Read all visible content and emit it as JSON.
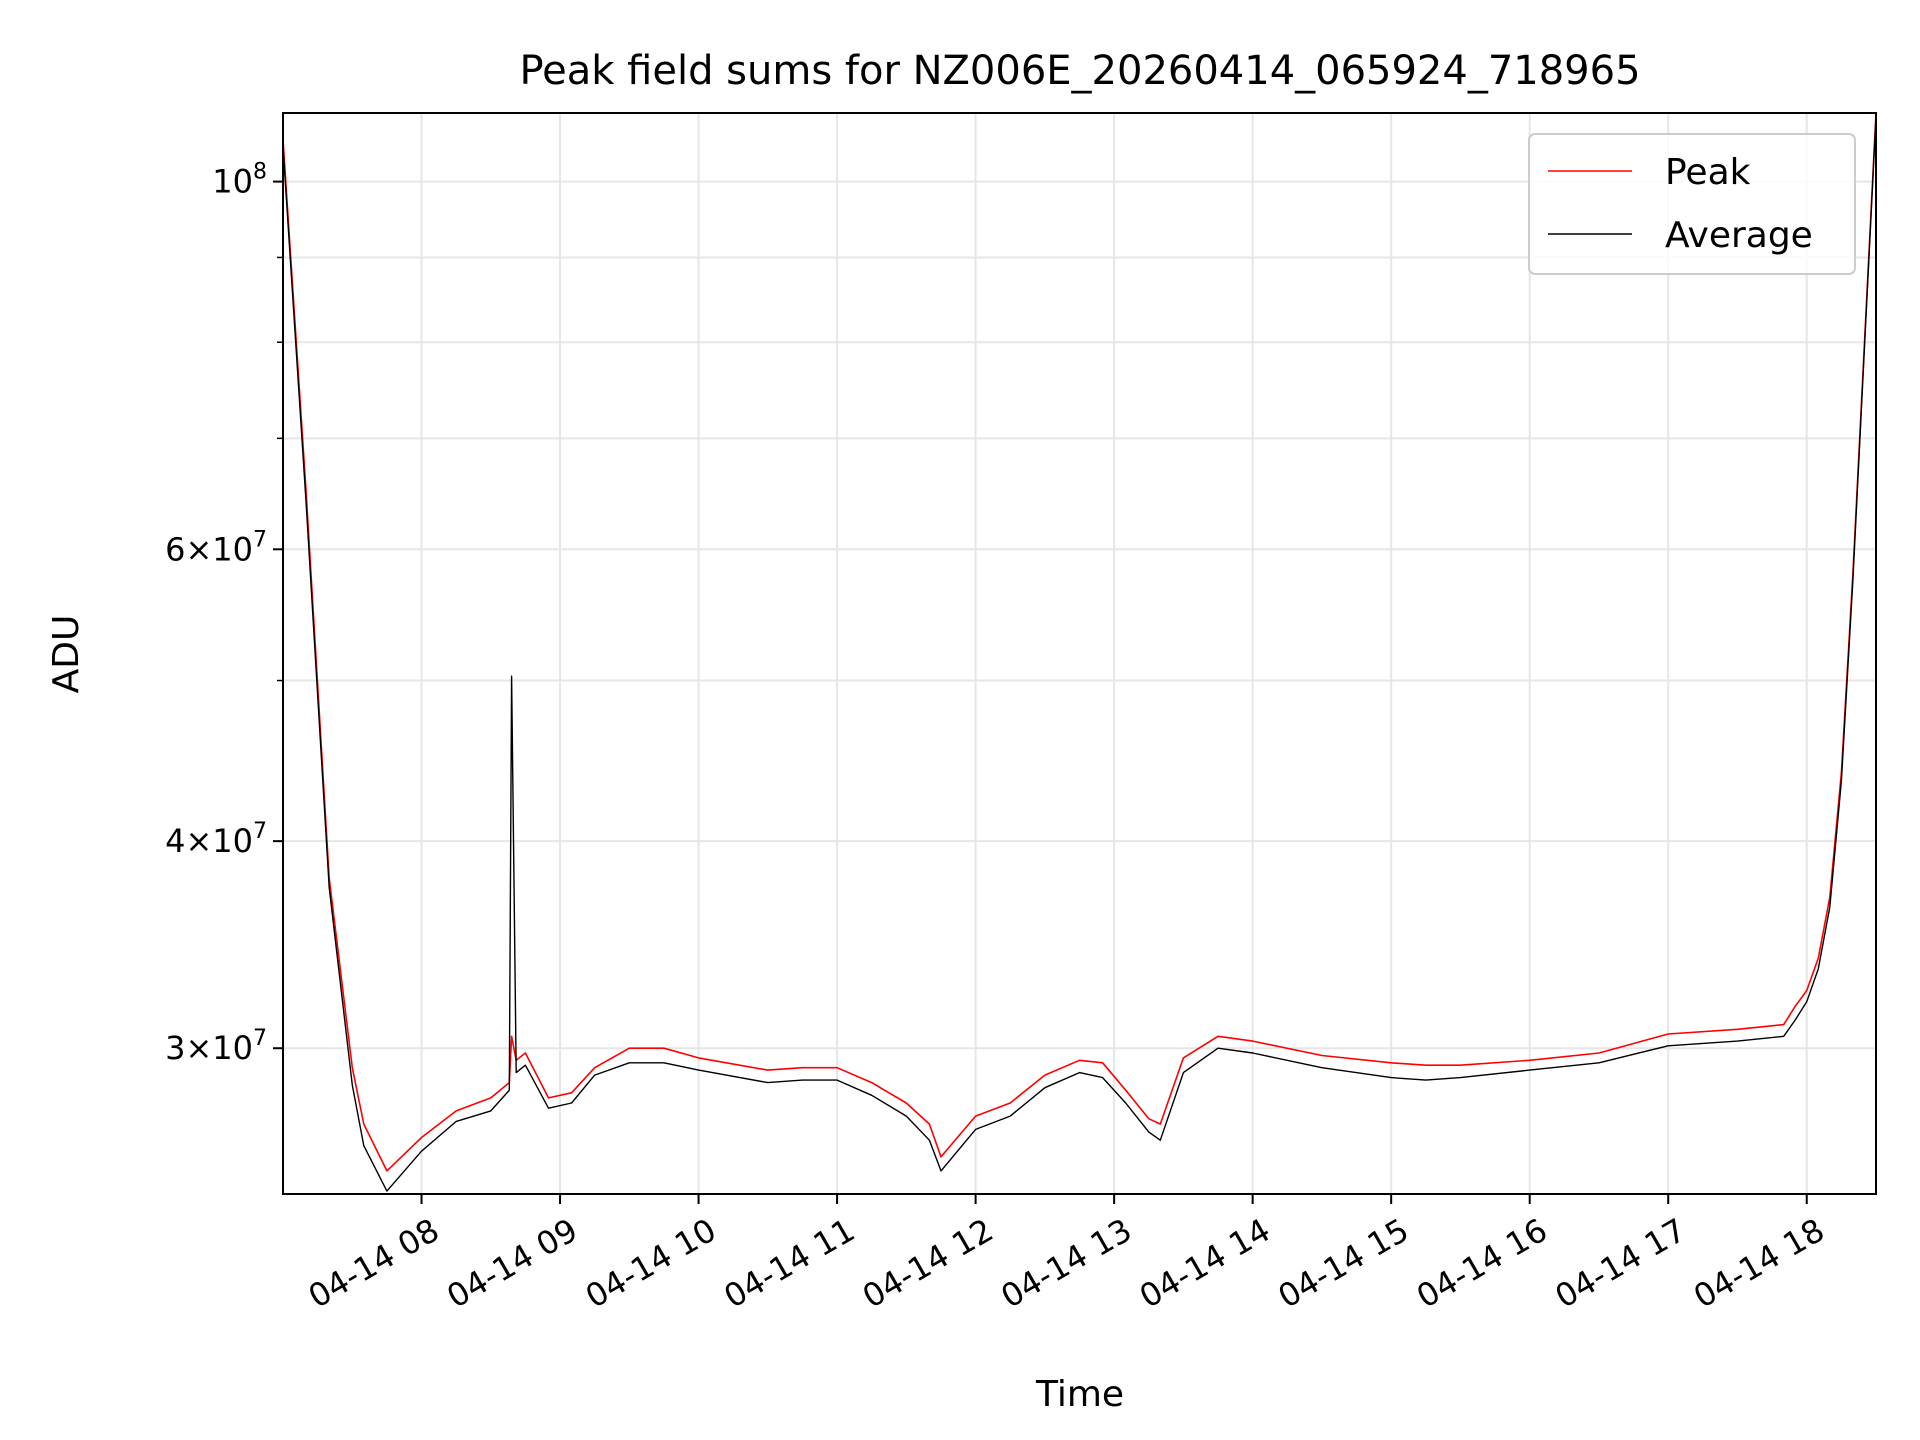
{
  "chart_data": {
    "type": "line",
    "title": "Peak field sums for NZ006E_20260414_065924_718965",
    "xlabel": "Time",
    "ylabel": "ADU",
    "x_scale": "time",
    "y_scale": "log",
    "xlim": [
      "2026-04-14 07:00",
      "2026-04-14 18:30"
    ],
    "ylim": [
      24500000,
      110000000
    ],
    "grid": true,
    "legend_position": "upper right",
    "x_ticks": [
      "2026-04-14 08:00",
      "2026-04-14 09:00",
      "2026-04-14 10:00",
      "2026-04-14 11:00",
      "2026-04-14 12:00",
      "2026-04-14 13:00",
      "2026-04-14 14:00",
      "2026-04-14 15:00",
      "2026-04-14 16:00",
      "2026-04-14 17:00",
      "2026-04-14 18:00"
    ],
    "x_tick_labels": [
      "04-14 08",
      "04-14 09",
      "04-14 10",
      "04-14 11",
      "04-14 12",
      "04-14 13",
      "04-14 14",
      "04-14 15",
      "04-14 16",
      "04-14 17",
      "04-14 18"
    ],
    "y_ticks": [
      100000000,
      60000000,
      40000000,
      30000000
    ],
    "y_tick_labels": [
      "10^8",
      "6×10^7",
      "4×10^7",
      "3×10^7"
    ],
    "y_minor_ticks": [
      90000000,
      80000000,
      70000000,
      50000000
    ],
    "series": [
      {
        "name": "Peak",
        "color": "#ff0000",
        "x": [
          "2026-04-14 07:00",
          "2026-04-14 07:10",
          "2026-04-14 07:20",
          "2026-04-14 07:30",
          "2026-04-14 07:35",
          "2026-04-14 07:45",
          "2026-04-14 08:00",
          "2026-04-14 08:15",
          "2026-04-14 08:30",
          "2026-04-14 08:38",
          "2026-04-14 08:39",
          "2026-04-14 08:41",
          "2026-04-14 08:45",
          "2026-04-14 08:55",
          "2026-04-14 09:05",
          "2026-04-14 09:15",
          "2026-04-14 09:30",
          "2026-04-14 09:45",
          "2026-04-14 10:00",
          "2026-04-14 10:30",
          "2026-04-14 10:45",
          "2026-04-14 11:00",
          "2026-04-14 11:15",
          "2026-04-14 11:30",
          "2026-04-14 11:40",
          "2026-04-14 11:45",
          "2026-04-14 12:00",
          "2026-04-14 12:15",
          "2026-04-14 12:30",
          "2026-04-14 12:45",
          "2026-04-14 12:55",
          "2026-04-14 13:05",
          "2026-04-14 13:15",
          "2026-04-14 13:20",
          "2026-04-14 13:30",
          "2026-04-14 13:45",
          "2026-04-14 14:00",
          "2026-04-14 14:30",
          "2026-04-14 15:00",
          "2026-04-14 15:15",
          "2026-04-14 15:30",
          "2026-04-14 16:00",
          "2026-04-14 16:30",
          "2026-04-14 17:00",
          "2026-04-14 17:30",
          "2026-04-14 17:50",
          "2026-04-14 17:55",
          "2026-04-14 18:00",
          "2026-04-14 18:05",
          "2026-04-14 18:10",
          "2026-04-14 18:15",
          "2026-04-14 18:20",
          "2026-04-14 18:25",
          "2026-04-14 18:30"
        ],
        "y": [
          106000000,
          65000000,
          38000000,
          29200000,
          27000000,
          25300000,
          26500000,
          27500000,
          28000000,
          28600000,
          30500000,
          29500000,
          29800000,
          28000000,
          28200000,
          29200000,
          30000000,
          30000000,
          29600000,
          29100000,
          29200000,
          29200000,
          28600000,
          27800000,
          27000000,
          25800000,
          27300000,
          27800000,
          28900000,
          29500000,
          29400000,
          28300000,
          27200000,
          27000000,
          29600000,
          30500000,
          30300000,
          29700000,
          29400000,
          29300000,
          29300000,
          29500000,
          29800000,
          30600000,
          30800000,
          31000000,
          31800000,
          32500000,
          34000000,
          37000000,
          44000000,
          58000000,
          80000000,
          110000000
        ]
      },
      {
        "name": "Average",
        "color": "#000000",
        "x": [
          "2026-04-14 07:00",
          "2026-04-14 07:10",
          "2026-04-14 07:20",
          "2026-04-14 07:30",
          "2026-04-14 07:35",
          "2026-04-14 07:45",
          "2026-04-14 08:00",
          "2026-04-14 08:15",
          "2026-04-14 08:30",
          "2026-04-14 08:38",
          "2026-04-14 08:39",
          "2026-04-14 08:41",
          "2026-04-14 08:45",
          "2026-04-14 08:55",
          "2026-04-14 09:05",
          "2026-04-14 09:15",
          "2026-04-14 09:30",
          "2026-04-14 09:45",
          "2026-04-14 10:00",
          "2026-04-14 10:30",
          "2026-04-14 10:45",
          "2026-04-14 11:00",
          "2026-04-14 11:15",
          "2026-04-14 11:30",
          "2026-04-14 11:40",
          "2026-04-14 11:45",
          "2026-04-14 12:00",
          "2026-04-14 12:15",
          "2026-04-14 12:30",
          "2026-04-14 12:45",
          "2026-04-14 12:55",
          "2026-04-14 13:05",
          "2026-04-14 13:15",
          "2026-04-14 13:20",
          "2026-04-14 13:30",
          "2026-04-14 13:45",
          "2026-04-14 14:00",
          "2026-04-14 14:30",
          "2026-04-14 15:00",
          "2026-04-14 15:15",
          "2026-04-14 15:30",
          "2026-04-14 16:00",
          "2026-04-14 16:30",
          "2026-04-14 17:00",
          "2026-04-14 17:30",
          "2026-04-14 17:50",
          "2026-04-14 17:55",
          "2026-04-14 18:00",
          "2026-04-14 18:05",
          "2026-04-14 18:10",
          "2026-04-14 18:15",
          "2026-04-14 18:20",
          "2026-04-14 18:25",
          "2026-04-14 18:30"
        ],
        "y": [
          105000000,
          64000000,
          37500000,
          28500000,
          26200000,
          24600000,
          26000000,
          27100000,
          27500000,
          28300000,
          50300000,
          29000000,
          29300000,
          27600000,
          27800000,
          28900000,
          29400000,
          29400000,
          29100000,
          28600000,
          28700000,
          28700000,
          28100000,
          27300000,
          26400000,
          25300000,
          26800000,
          27300000,
          28400000,
          29000000,
          28800000,
          27800000,
          26700000,
          26400000,
          29000000,
          30000000,
          29800000,
          29200000,
          28800000,
          28700000,
          28800000,
          29100000,
          29400000,
          30100000,
          30300000,
          30500000,
          31200000,
          32000000,
          33500000,
          36500000,
          43500000,
          57500000,
          79500000,
          109500000
        ]
      }
    ]
  }
}
